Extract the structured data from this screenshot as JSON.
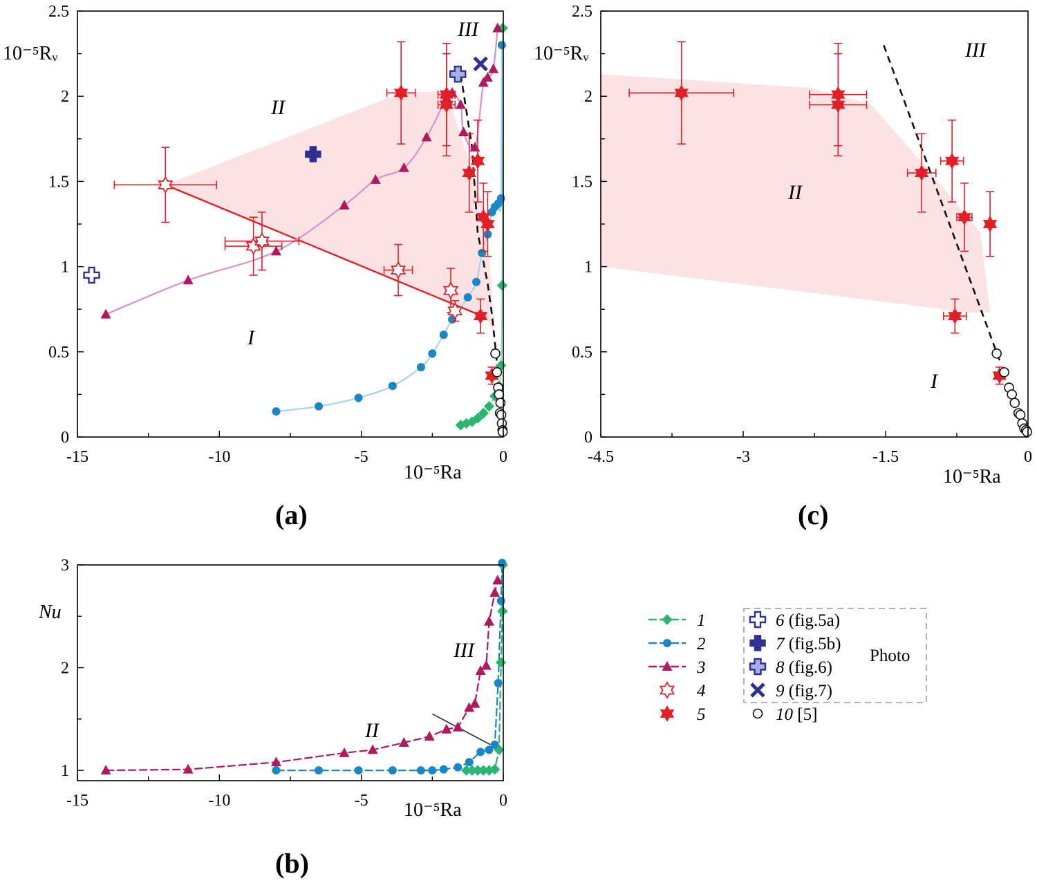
{
  "colors": {
    "s1": "#2bb573",
    "s2": "#1a86c6",
    "s3": "#b0195e",
    "s5": "#e21f26",
    "photo": "#2e3192",
    "shade": "#fbe3e3",
    "fit_pink": "#d890c8",
    "fit_blue": "#a9d3ea"
  },
  "panels": {
    "a": {
      "label": "(a)",
      "xlabel": "10⁻⁵Ra",
      "ylabel": "10⁻⁵Rᵥ",
      "xticks": [
        "-15",
        "-10",
        "-5",
        "0"
      ],
      "yticks": [
        "0",
        "0.5",
        "1",
        "1.5",
        "2",
        "2.5"
      ],
      "regions": [
        "I",
        "II",
        "III"
      ]
    },
    "b": {
      "label": "(b)",
      "xlabel": "10⁻⁵Ra",
      "ylabel": "Nu",
      "xticks": [
        "-15",
        "-10",
        "-5",
        "0"
      ],
      "yticks": [
        "1",
        "2",
        "3"
      ],
      "regions": [
        "II",
        "III"
      ]
    },
    "c": {
      "label": "(c)",
      "xlabel": "10⁻⁵Ra",
      "ylabel": "10⁻⁵Rᵥ",
      "xticks": [
        "-4.5",
        "-3",
        "-1.5",
        "0"
      ],
      "yticks": [
        "0",
        "0.5",
        "1",
        "1.5",
        "2",
        "2.5"
      ],
      "regions": [
        "I",
        "II",
        "III"
      ]
    }
  },
  "legend": {
    "items": [
      {
        "num": "1",
        "icon": "diamond-line-icon"
      },
      {
        "num": "2",
        "icon": "circle-line-icon"
      },
      {
        "num": "3",
        "icon": "triangle-line-icon"
      },
      {
        "num": "4",
        "icon": "open-star-icon"
      },
      {
        "num": "5",
        "icon": "filled-star-icon"
      }
    ],
    "photo_items": [
      {
        "num": "6",
        "ref": "(fig.5a)",
        "icon": "open-cross-icon"
      },
      {
        "num": "7",
        "ref": "(fig.5b)",
        "icon": "filled-cross-icon"
      },
      {
        "num": "8",
        "ref": "(fig.6)",
        "icon": "hatched-cross-icon"
      },
      {
        "num": "9",
        "ref": "(fig.7)",
        "icon": "x-mark-icon"
      },
      {
        "num": "10",
        "ref": "[5]",
        "icon": "open-circle-icon"
      }
    ],
    "photo_label": "Photo"
  },
  "chart_data": [
    {
      "panel": "a",
      "type": "scatter",
      "xlabel": "10⁻⁵Ra",
      "ylabel": "10⁻⁵Rᵥ",
      "xlim": [
        -15,
        0
      ],
      "ylim": [
        0,
        2.5
      ],
      "series": [
        {
          "name": "1",
          "x": [
            -1.5,
            -1.3,
            -1.1,
            -0.9,
            -0.7,
            -0.5,
            -0.3,
            -0.15,
            -0.08,
            -0.04,
            -0.02
          ],
          "y": [
            0.07,
            0.08,
            0.09,
            0.11,
            0.14,
            0.18,
            0.24,
            0.3,
            0.42,
            0.89,
            2.4
          ]
        },
        {
          "name": "2",
          "x": [
            -8.0,
            -6.5,
            -5.1,
            -3.9,
            -2.9,
            -2.5,
            -2.1,
            -1.8,
            -1.25,
            -0.95,
            -0.75,
            -0.55,
            -0.4,
            -0.3,
            -0.18,
            -0.08,
            -0.05
          ],
          "y": [
            0.15,
            0.18,
            0.23,
            0.3,
            0.41,
            0.49,
            0.6,
            0.69,
            0.82,
            0.91,
            1.08,
            1.19,
            1.32,
            1.35,
            1.37,
            1.4,
            2.3
          ]
        },
        {
          "name": "3",
          "x": [
            -14,
            -11.1,
            -8.0,
            -5.6,
            -4.5,
            -3.5,
            -2.7,
            -2.0,
            -1.8,
            -1.5,
            -1.4,
            -1.0,
            -0.7,
            -0.55,
            -0.35,
            -0.2
          ],
          "y": [
            0.72,
            0.92,
            1.09,
            1.36,
            1.51,
            1.58,
            1.76,
            1.99,
            2.02,
            1.95,
            1.79,
            1.7,
            2.08,
            2.11,
            2.16,
            2.4
          ]
        },
        {
          "name": "4",
          "x": [
            -11.9,
            -8.8,
            -8.5,
            -3.7,
            -1.85,
            -1.7
          ],
          "y": [
            1.48,
            1.12,
            1.15,
            0.98,
            0.86,
            0.74
          ],
          "xerr": [
            1.8,
            1.0,
            1.3,
            0.5,
            0.1,
            0.1
          ],
          "yerr": [
            0.22,
            0.17,
            0.17,
            0.15,
            0.13,
            0.06
          ]
        },
        {
          "name": "5",
          "x": [
            -3.6,
            -2.0,
            -2.0,
            -1.2,
            -0.9,
            -0.7,
            -0.55,
            -0.8,
            -0.4
          ],
          "y": [
            2.02,
            2.01,
            1.95,
            1.55,
            1.62,
            1.29,
            1.25,
            0.71,
            0.36
          ],
          "xerr": [
            0.5,
            0.3,
            0.3,
            0.15,
            0.15,
            0.15,
            0.1,
            0.15,
            0.05
          ],
          "yerr": [
            0.3,
            0.3,
            0.3,
            0.23,
            0.24,
            0.2,
            0.19,
            0.1,
            0.05
          ]
        },
        {
          "name": "6",
          "x": [
            -14.5,
            -1.6
          ],
          "y": [
            0.95,
            2.13
          ]
        },
        {
          "name": "7",
          "x": [
            -6.7
          ],
          "y": [
            1.66
          ]
        },
        {
          "name": "8",
          "x": [
            -1.6
          ],
          "y": [
            2.13
          ]
        },
        {
          "name": "9",
          "x": [
            -0.8
          ],
          "y": [
            2.19
          ]
        },
        {
          "name": "10",
          "x": [
            -0.28,
            -0.22,
            -0.18,
            -0.15,
            -0.1,
            -0.12,
            -0.07,
            -0.05,
            -0.03,
            -0.02
          ],
          "y": [
            0.49,
            0.38,
            0.29,
            0.25,
            0.2,
            0.14,
            0.13,
            0.08,
            0.04,
            0.03
          ]
        }
      ],
      "fit_line": {
        "x": [
          -11.9,
          -0.6
        ],
        "y": [
          1.48,
          0.7
        ]
      },
      "boundary": {
        "x": [
          -1.5,
          -1.1,
          -0.9,
          -0.55,
          -0.4,
          -0.2
        ],
        "y": [
          2.13,
          1.7,
          1.2,
          0.9,
          0.72,
          0.4
        ]
      },
      "shaded_region": {
        "x": [
          -11.9,
          -3.6,
          -2.0,
          -0.6,
          -0.3,
          -0.6,
          -11.9
        ],
        "y": [
          1.48,
          2.02,
          2.03,
          1.3,
          0.6,
          0.7,
          1.48
        ]
      }
    },
    {
      "panel": "b",
      "type": "line",
      "xlabel": "10⁻⁵Ra",
      "ylabel": "Nu",
      "xlim": [
        -15,
        0
      ],
      "ylim": [
        0.9,
        3.0
      ],
      "series": [
        {
          "name": "1",
          "x": [
            -1.3,
            -1.1,
            -0.9,
            -0.7,
            -0.5,
            -0.3,
            -0.15,
            -0.08,
            -0.03,
            -0.02
          ],
          "y": [
            1.0,
            1.0,
            1.0,
            1.0,
            1.0,
            1.01,
            1.2,
            2.05,
            2.55,
            3.0
          ]
        },
        {
          "name": "2",
          "x": [
            -8.0,
            -6.5,
            -5.1,
            -3.9,
            -2.9,
            -2.5,
            -2.1,
            -1.6,
            -1.2,
            -0.8,
            -0.5,
            -0.3,
            -0.18,
            -0.08,
            -0.04
          ],
          "y": [
            1.0,
            1.0,
            1.0,
            1.0,
            1.0,
            1.0,
            1.01,
            1.03,
            1.08,
            1.18,
            1.2,
            1.25,
            1.85,
            2.65,
            3.02
          ]
        },
        {
          "name": "3",
          "x": [
            -14,
            -11.1,
            -8.0,
            -5.6,
            -4.6,
            -3.5,
            -2.6,
            -2.0,
            -1.6,
            -1.2,
            -1.0,
            -0.8,
            -0.6,
            -0.5,
            -0.3,
            -0.2
          ],
          "y": [
            1.0,
            1.01,
            1.08,
            1.17,
            1.2,
            1.27,
            1.33,
            1.4,
            1.42,
            1.61,
            1.65,
            1.97,
            2.02,
            2.45,
            2.73,
            2.85
          ]
        }
      ],
      "boundary": {
        "x": [
          -2.5,
          -0.45
        ],
        "y": [
          1.55,
          1.25
        ]
      }
    },
    {
      "panel": "c",
      "type": "scatter",
      "xlabel": "10⁻⁵Ra",
      "ylabel": "10⁻⁵Rᵥ",
      "xlim": [
        -4.5,
        0
      ],
      "ylim": [
        0,
        2.5
      ],
      "series": [
        {
          "name": "5",
          "x": [
            -3.65,
            -2.0,
            -2.0,
            -1.12,
            -0.8,
            -0.67,
            -0.4,
            -0.77,
            -0.3
          ],
          "y": [
            2.02,
            2.01,
            1.95,
            1.55,
            1.62,
            1.29,
            1.25,
            0.71,
            0.36
          ],
          "xerr": [
            0.55,
            0.3,
            0.3,
            0.15,
            0.12,
            0.08,
            0.04,
            0.12,
            0.05
          ],
          "yerr": [
            0.3,
            0.3,
            0.3,
            0.23,
            0.24,
            0.2,
            0.19,
            0.1,
            0.05
          ]
        },
        {
          "name": "10",
          "x": [
            -0.33,
            -0.25,
            -0.2,
            -0.17,
            -0.14,
            -0.1,
            -0.08,
            -0.06,
            -0.04,
            -0.02,
            -0.01
          ],
          "y": [
            0.49,
            0.38,
            0.29,
            0.25,
            0.2,
            0.14,
            0.13,
            0.08,
            0.05,
            0.04,
            0.03
          ]
        }
      ],
      "boundary": {
        "x": [
          -1.52,
          -0.3
        ],
        "y": [
          2.3,
          0.45
        ]
      },
      "shaded_region": {
        "x": [
          -4.5,
          -2.3,
          -1.65,
          -1.1,
          -0.5,
          -0.4,
          -0.6,
          -4.5
        ],
        "y": [
          2.13,
          2.05,
          1.95,
          1.6,
          1.2,
          0.73,
          0.73,
          1.0
        ]
      }
    }
  ]
}
